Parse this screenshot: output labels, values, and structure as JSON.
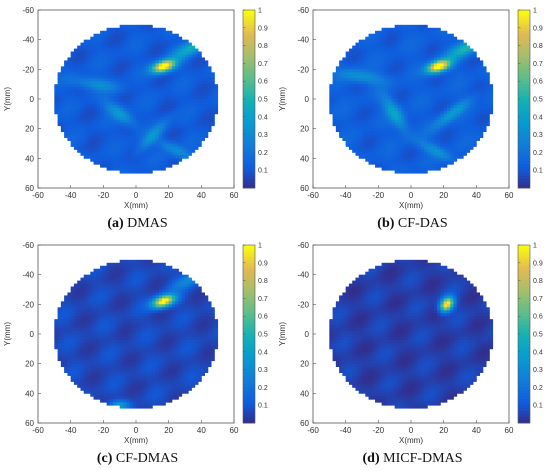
{
  "colorbar": {
    "ticks": [
      "1",
      "0.9",
      "0.8",
      "0.7",
      "0.6",
      "0.5",
      "0.4",
      "0.3",
      "0.2",
      "0.1"
    ],
    "low": "#3c1ea8",
    "high": "#f5e626"
  },
  "chart_data": [
    {
      "type": "heatmap",
      "caption_tag": "(a)",
      "caption": "DMAS",
      "xlabel": "X(mm)",
      "ylabel": "Y(mm)",
      "xlim": [
        -60,
        60
      ],
      "ylim": [
        -60,
        60
      ],
      "xticks": [
        "-60",
        "-40",
        "-20",
        "0",
        "20",
        "40",
        "60"
      ],
      "yticks": [
        "-60",
        "-40",
        "-20",
        "0",
        "20",
        "40",
        "60"
      ],
      "disk_radius_mm": 50,
      "background_level": 0.12,
      "hotspots": [
        {
          "x": 17,
          "y": -22,
          "sx": 5,
          "sy": 2.5,
          "angle": -20,
          "value": 1.0
        },
        {
          "x": 35,
          "y": -35,
          "sx": 10,
          "sy": 3,
          "angle": -30,
          "value": 0.35
        },
        {
          "x": -10,
          "y": 10,
          "sx": 8,
          "sy": 3,
          "angle": 40,
          "value": 0.25
        },
        {
          "x": 10,
          "y": 25,
          "sx": 9,
          "sy": 2.5,
          "angle": -50,
          "value": 0.22
        },
        {
          "x": -25,
          "y": -10,
          "sx": 10,
          "sy": 3,
          "angle": 10,
          "value": 0.2
        },
        {
          "x": 25,
          "y": 35,
          "sx": 9,
          "sy": 2.5,
          "angle": 30,
          "value": 0.2
        }
      ]
    },
    {
      "type": "heatmap",
      "caption_tag": "(b)",
      "caption": "CF-DAS",
      "xlabel": "X(mm)",
      "ylabel": "Y(mm)",
      "xlim": [
        -60,
        60
      ],
      "ylim": [
        -60,
        60
      ],
      "xticks": [
        "-60",
        "-40",
        "-20",
        "0",
        "20",
        "40",
        "60"
      ],
      "yticks": [
        "-60",
        "-40",
        "-20",
        "0",
        "20",
        "40",
        "60"
      ],
      "disk_radius_mm": 50,
      "background_level": 0.13,
      "hotspots": [
        {
          "x": 17,
          "y": -22,
          "sx": 5,
          "sy": 2.5,
          "angle": -20,
          "value": 1.0
        },
        {
          "x": 35,
          "y": -35,
          "sx": 10,
          "sy": 3,
          "angle": -30,
          "value": 0.4
        },
        {
          "x": -10,
          "y": 10,
          "sx": 9,
          "sy": 3,
          "angle": 60,
          "value": 0.3
        },
        {
          "x": 25,
          "y": 10,
          "sx": 10,
          "sy": 2.5,
          "angle": -40,
          "value": 0.25
        },
        {
          "x": -30,
          "y": -15,
          "sx": 10,
          "sy": 3,
          "angle": 10,
          "value": 0.22
        },
        {
          "x": 15,
          "y": 35,
          "sx": 9,
          "sy": 2.5,
          "angle": 30,
          "value": 0.2
        }
      ]
    },
    {
      "type": "heatmap",
      "caption_tag": "(c)",
      "caption": "CF-DMAS",
      "xlabel": "X(mm)",
      "ylabel": "Y(mm)",
      "xlim": [
        -60,
        60
      ],
      "ylim": [
        -60,
        60
      ],
      "xticks": [
        "-60",
        "-40",
        "-20",
        "0",
        "20",
        "40",
        "60"
      ],
      "yticks": [
        "-60",
        "-40",
        "-20",
        "0",
        "20",
        "40",
        "60"
      ],
      "disk_radius_mm": 50,
      "background_level": 0.07,
      "hotspots": [
        {
          "x": 17,
          "y": -22,
          "sx": 5,
          "sy": 2.5,
          "angle": -20,
          "value": 1.0
        },
        {
          "x": 35,
          "y": -38,
          "sx": 10,
          "sy": 3,
          "angle": -30,
          "value": 0.25
        },
        {
          "x": -10,
          "y": 48,
          "sx": 4,
          "sy": 2,
          "angle": 0,
          "value": 0.3
        }
      ]
    },
    {
      "type": "heatmap",
      "caption_tag": "(d)",
      "caption": "MICF-DMAS",
      "xlabel": "X(mm)",
      "ylabel": "Y(mm)",
      "xlim": [
        -60,
        60
      ],
      "ylim": [
        -60,
        60
      ],
      "xticks": [
        "-60",
        "-40",
        "-20",
        "0",
        "20",
        "40",
        "60"
      ],
      "yticks": [
        "-60",
        "-40",
        "-20",
        "0",
        "20",
        "40",
        "60"
      ],
      "disk_radius_mm": 50,
      "background_level": 0.05,
      "hotspots": [
        {
          "x": 22,
          "y": -20,
          "sx": 2.5,
          "sy": 3.5,
          "angle": 30,
          "value": 1.0
        }
      ]
    }
  ]
}
